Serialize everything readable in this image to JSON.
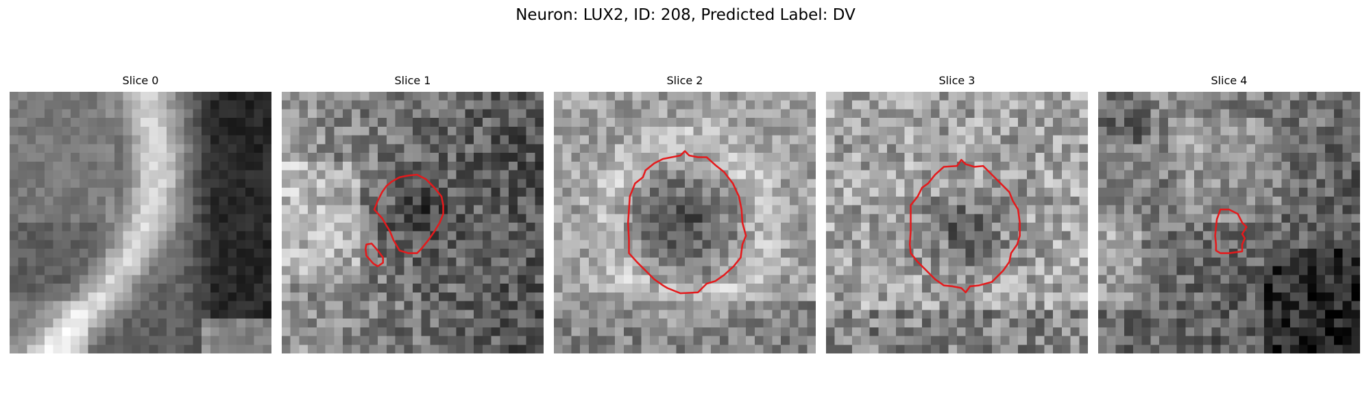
{
  "figure": {
    "title": "Neuron: LUX2, ID: 208, Predicted Label: DV"
  },
  "colors": {
    "contour": "#e41a1c",
    "background": "#ffffff"
  },
  "image": {
    "grid_size": 30,
    "colormap": "gray"
  },
  "slices": [
    {
      "title": "Slice 0",
      "roi_contours": []
    },
    {
      "title": "Slice 1",
      "roi_contours": [
        [
          [
            13.5,
            9.8
          ],
          [
            14.5,
            9.6
          ],
          [
            15.5,
            9.5
          ],
          [
            16.5,
            10.0
          ],
          [
            17.5,
            11.0
          ],
          [
            18.3,
            12.0
          ],
          [
            18.5,
            13.0
          ],
          [
            18.5,
            14.0
          ],
          [
            18.1,
            15.0
          ],
          [
            17.5,
            16.0
          ],
          [
            16.8,
            17.0
          ],
          [
            16.0,
            18.0
          ],
          [
            15.5,
            18.5
          ],
          [
            14.5,
            18.5
          ],
          [
            13.5,
            18.2
          ],
          [
            12.8,
            17.0
          ],
          [
            12.4,
            16.0
          ],
          [
            11.5,
            14.5
          ],
          [
            10.6,
            13.5
          ],
          [
            11.0,
            12.5
          ],
          [
            11.5,
            11.5
          ],
          [
            12.0,
            10.8
          ],
          [
            12.6,
            10.3
          ]
        ],
        [
          [
            9.7,
            17.5
          ],
          [
            10.3,
            17.4
          ],
          [
            11.0,
            18.2
          ],
          [
            11.6,
            19.0
          ],
          [
            11.6,
            19.6
          ],
          [
            11.0,
            20.0
          ],
          [
            10.5,
            19.7
          ],
          [
            9.7,
            18.8
          ],
          [
            9.6,
            18.0
          ]
        ]
      ]
    },
    {
      "title": "Slice 2",
      "roi_contours": [
        [
          [
            14.5,
            7.3
          ],
          [
            15.0,
            6.8
          ],
          [
            15.5,
            7.3
          ],
          [
            16.5,
            7.5
          ],
          [
            17.5,
            7.5
          ],
          [
            18.5,
            8.4
          ],
          [
            19.5,
            9.2
          ],
          [
            20.5,
            10.5
          ],
          [
            21.2,
            12.0
          ],
          [
            21.5,
            13.5
          ],
          [
            21.6,
            15.0
          ],
          [
            22.0,
            16.5
          ],
          [
            21.6,
            17.5
          ],
          [
            21.4,
            19.0
          ],
          [
            20.6,
            20.0
          ],
          [
            19.5,
            21.0
          ],
          [
            18.5,
            21.7
          ],
          [
            17.5,
            22.0
          ],
          [
            17.0,
            22.5
          ],
          [
            16.5,
            23.0
          ],
          [
            14.5,
            23.1
          ],
          [
            13.0,
            22.5
          ],
          [
            12.5,
            22.2
          ],
          [
            11.5,
            21.5
          ],
          [
            10.5,
            20.5
          ],
          [
            9.5,
            19.5
          ],
          [
            8.6,
            18.5
          ],
          [
            8.6,
            17.0
          ],
          [
            8.5,
            15.0
          ],
          [
            8.6,
            13.5
          ],
          [
            8.7,
            12.0
          ],
          [
            9.3,
            10.5
          ],
          [
            10.2,
            9.8
          ],
          [
            10.5,
            9.0
          ],
          [
            11.5,
            8.2
          ],
          [
            12.5,
            7.7
          ],
          [
            13.5,
            7.5
          ]
        ]
      ]
    },
    {
      "title": "Slice 3",
      "roi_contours": [
        [
          [
            15.0,
            8.5
          ],
          [
            15.5,
            7.8
          ],
          [
            16.0,
            8.3
          ],
          [
            17.0,
            8.6
          ],
          [
            18.0,
            8.5
          ],
          [
            19.0,
            9.5
          ],
          [
            20.0,
            10.5
          ],
          [
            21.0,
            11.5
          ],
          [
            21.4,
            12.5
          ],
          [
            22.0,
            13.5
          ],
          [
            22.2,
            15.0
          ],
          [
            22.2,
            16.5
          ],
          [
            21.9,
            17.5
          ],
          [
            21.2,
            18.5
          ],
          [
            21.0,
            19.5
          ],
          [
            20.3,
            20.5
          ],
          [
            19.0,
            21.8
          ],
          [
            17.5,
            22.2
          ],
          [
            16.5,
            22.3
          ],
          [
            16.0,
            23.0
          ],
          [
            15.5,
            22.5
          ],
          [
            14.5,
            22.3
          ],
          [
            13.5,
            22.2
          ],
          [
            12.5,
            21.5
          ],
          [
            11.5,
            20.5
          ],
          [
            10.5,
            19.5
          ],
          [
            9.7,
            18.5
          ],
          [
            9.6,
            17.5
          ],
          [
            9.7,
            16.0
          ],
          [
            9.7,
            14.5
          ],
          [
            9.7,
            13.0
          ],
          [
            10.5,
            12.0
          ],
          [
            11.0,
            11.0
          ],
          [
            11.7,
            10.5
          ],
          [
            12.5,
            9.5
          ],
          [
            13.5,
            8.6
          ]
        ]
      ]
    },
    {
      "title": "Slice 4",
      "roi_contours": [
        [
          [
            14.0,
            13.5
          ],
          [
            15.0,
            13.5
          ],
          [
            16.0,
            14.0
          ],
          [
            16.5,
            15.0
          ],
          [
            17.0,
            15.5
          ],
          [
            16.5,
            16.3
          ],
          [
            16.8,
            16.8
          ],
          [
            16.5,
            17.5
          ],
          [
            16.5,
            18.3
          ],
          [
            15.0,
            18.5
          ],
          [
            14.0,
            18.5
          ],
          [
            13.5,
            18.2
          ],
          [
            13.5,
            17.5
          ],
          [
            13.4,
            16.5
          ],
          [
            13.5,
            15.5
          ],
          [
            13.6,
            14.6
          ]
        ]
      ]
    }
  ]
}
